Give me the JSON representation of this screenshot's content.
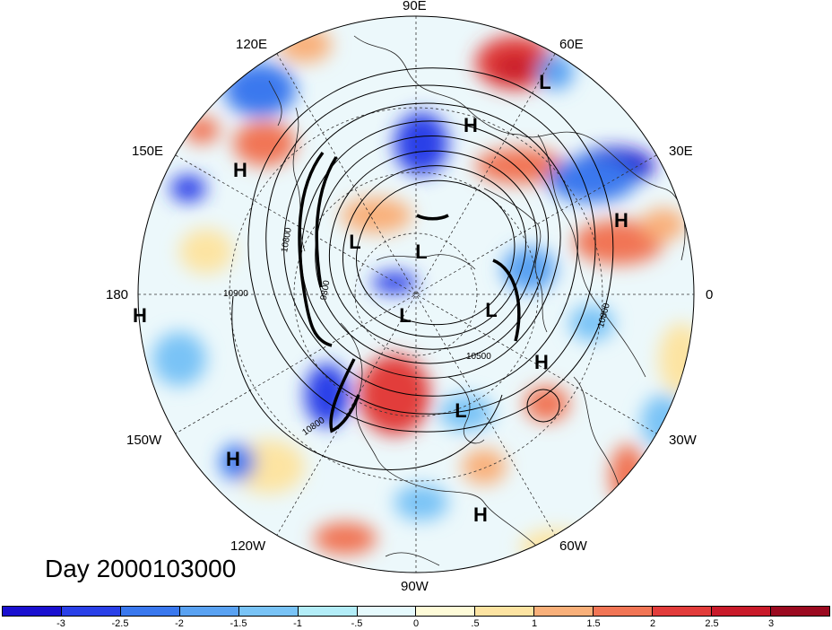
{
  "day_label": "Day 2000103000",
  "longitude_labels": {
    "e90": "90E",
    "e120": "120E",
    "e60": "60E",
    "e150": "150E",
    "e30": "30E",
    "w180": "180",
    "zero": "0",
    "w150": "150W",
    "w30": "30W",
    "w120": "120W",
    "w60": "60W",
    "w90": "90W"
  },
  "pressure_centers": [
    "L",
    "H",
    "H",
    "H",
    "L",
    "L",
    "L",
    "L",
    "H",
    "L",
    "H",
    "H",
    "H"
  ],
  "contour_labels": [
    "10800",
    "10900",
    "9800",
    "10800",
    "10800",
    "10500"
  ],
  "colorbar": {
    "ticks": [
      "-3",
      "-2.5",
      "-2",
      "-1.5",
      "-1",
      "-.5",
      "0",
      ".5",
      "1",
      "1.5",
      "2",
      "2.5",
      "3"
    ],
    "colors": [
      "#1a10d0",
      "#2a40e8",
      "#3a78ee",
      "#5aa2f2",
      "#79c3f6",
      "#b3edf8",
      "#e6fafd",
      "#fefbd8",
      "#fde4a2",
      "#f9b07a",
      "#f17555",
      "#e23c3b",
      "#c91a2a",
      "#9b0a20"
    ]
  }
}
